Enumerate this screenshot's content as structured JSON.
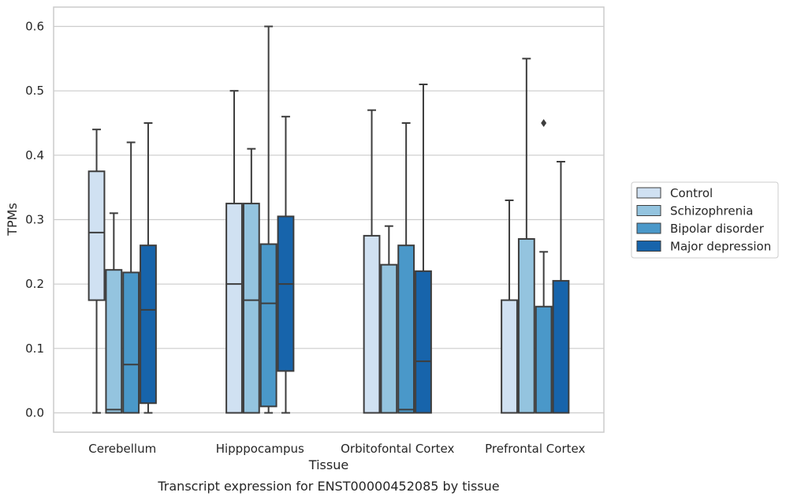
{
  "chart_data": {
    "type": "box",
    "title": "",
    "caption": "Transcript expression for ENST00000452085 by tissue",
    "xlabel": "Tissue",
    "ylabel": "TPMs",
    "ylim": [
      -0.03,
      0.63
    ],
    "yticks": [
      0.0,
      0.1,
      0.2,
      0.3,
      0.4,
      0.5,
      0.6
    ],
    "ytick_labels": [
      "0.0",
      "0.1",
      "0.2",
      "0.3",
      "0.4",
      "0.5",
      "0.6"
    ],
    "grid": "horizontal",
    "legend_position": "right",
    "categories": [
      "Cerebellum",
      "Hipppocampus",
      "Orbitofontal Cortex",
      "Prefrontal Cortex"
    ],
    "series": [
      {
        "name": "Control",
        "color": "#d0e1f2",
        "boxes": [
          {
            "min": 0.0,
            "q1": 0.175,
            "median": 0.28,
            "q3": 0.375,
            "max": 0.44,
            "outliers": []
          },
          {
            "min": 0.0,
            "q1": 0.0,
            "median": 0.2,
            "q3": 0.325,
            "max": 0.5,
            "outliers": []
          },
          {
            "min": 0.0,
            "q1": 0.0,
            "median": 0.0,
            "q3": 0.275,
            "max": 0.47,
            "outliers": []
          },
          {
            "min": 0.0,
            "q1": 0.0,
            "median": 0.0,
            "q3": 0.175,
            "max": 0.33,
            "outliers": []
          }
        ]
      },
      {
        "name": "Schizophrenia",
        "color": "#94c4df",
        "boxes": [
          {
            "min": 0.0,
            "q1": 0.0,
            "median": 0.005,
            "q3": 0.222,
            "max": 0.31,
            "outliers": []
          },
          {
            "min": 0.0,
            "q1": 0.0,
            "median": 0.175,
            "q3": 0.325,
            "max": 0.41,
            "outliers": []
          },
          {
            "min": 0.0,
            "q1": 0.0,
            "median": 0.0,
            "q3": 0.23,
            "max": 0.29,
            "outliers": []
          },
          {
            "min": 0.0,
            "q1": 0.0,
            "median": 0.0,
            "q3": 0.27,
            "max": 0.55,
            "outliers": []
          }
        ]
      },
      {
        "name": "Bipolar disorder",
        "color": "#4a98c9",
        "boxes": [
          {
            "min": 0.0,
            "q1": 0.0,
            "median": 0.075,
            "q3": 0.218,
            "max": 0.42,
            "outliers": []
          },
          {
            "min": 0.0,
            "q1": 0.01,
            "median": 0.17,
            "q3": 0.262,
            "max": 0.6,
            "outliers": []
          },
          {
            "min": 0.0,
            "q1": 0.0,
            "median": 0.005,
            "q3": 0.26,
            "max": 0.45,
            "outliers": []
          },
          {
            "min": 0.0,
            "q1": 0.0,
            "median": 0.0,
            "q3": 0.165,
            "max": 0.25,
            "outliers": [
              0.45
            ]
          }
        ]
      },
      {
        "name": "Major depression",
        "color": "#1764ab",
        "boxes": [
          {
            "min": 0.0,
            "q1": 0.015,
            "median": 0.16,
            "q3": 0.26,
            "max": 0.45,
            "outliers": []
          },
          {
            "min": 0.0,
            "q1": 0.065,
            "median": 0.2,
            "q3": 0.305,
            "max": 0.46,
            "outliers": []
          },
          {
            "min": 0.0,
            "q1": 0.0,
            "median": 0.08,
            "q3": 0.22,
            "max": 0.51,
            "outliers": []
          },
          {
            "min": 0.0,
            "q1": 0.0,
            "median": 0.0,
            "q3": 0.205,
            "max": 0.39,
            "outliers": []
          }
        ]
      }
    ]
  }
}
